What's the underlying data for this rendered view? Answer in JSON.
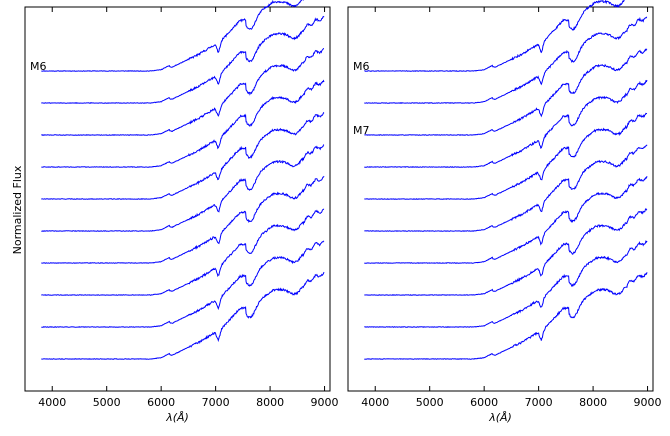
{
  "chart_data": {
    "type": "line",
    "ylabel": "Normalized Flux",
    "line_color": "#0000ff",
    "panels": [
      {
        "id": "left",
        "xlabel": "λ(Å)",
        "xlim": [
          3500,
          9100
        ],
        "xticks": [
          4000,
          5000,
          6000,
          7000,
          8000,
          9000
        ],
        "ylim": [
          0,
          12
        ],
        "yticks_shown": false,
        "annotations": [
          {
            "text": "M6",
            "spectrum_index": 0
          }
        ],
        "spectra": [
          {
            "offset": 10
          },
          {
            "offset": 9
          },
          {
            "offset": 8
          },
          {
            "offset": 7
          },
          {
            "offset": 6
          },
          {
            "offset": 5
          },
          {
            "offset": 4
          },
          {
            "offset": 3
          },
          {
            "offset": 2
          },
          {
            "offset": 1
          }
        ]
      },
      {
        "id": "right",
        "xlabel": "λ(Å)",
        "xlim": [
          3500,
          9100
        ],
        "xticks": [
          4000,
          5000,
          6000,
          7000,
          8000,
          9000
        ],
        "ylim": [
          0,
          12
        ],
        "yticks_shown": false,
        "annotations": [
          {
            "text": "M6",
            "spectrum_index": 0
          },
          {
            "text": "M7",
            "spectrum_index": 2
          }
        ],
        "spectra": [
          {
            "offset": 10
          },
          {
            "offset": 9
          },
          {
            "offset": 8
          },
          {
            "offset": 7
          },
          {
            "offset": 6
          },
          {
            "offset": 5
          },
          {
            "offset": 4
          },
          {
            "offset": 3
          },
          {
            "offset": 2
          },
          {
            "offset": 1
          }
        ]
      }
    ]
  }
}
